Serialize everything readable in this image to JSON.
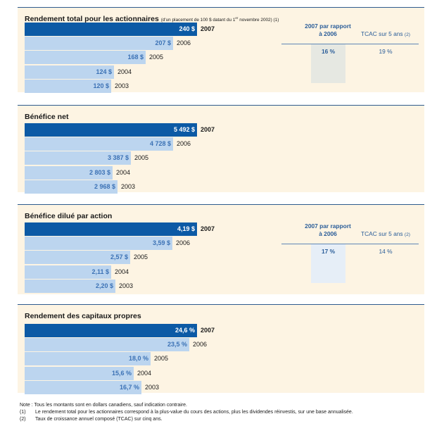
{
  "charts": [
    {
      "title": "Rendement total pour les actionnaires",
      "subtitle_pre": "(d'un placement de 100 $ datant du 1",
      "subtitle_sup": "er",
      "subtitle_post": " novembre 2002) (1)",
      "stats": {
        "header1_line1": "2007 par rapport",
        "header1_line2": "à 2006",
        "header2": "TCAC sur 5 ans",
        "header2_note": "(2)",
        "value1": "16 %",
        "value2": "19 %"
      }
    },
    {
      "title": "Bénéfice net"
    },
    {
      "title": "Bénéfice dilué par action",
      "stats": {
        "header1_line1": "2007 par rapport",
        "header1_line2": "à 2006",
        "header2": "TCAC sur 5 ans",
        "header2_note": "(2)",
        "value1": "17 %",
        "value2": "14 %"
      }
    },
    {
      "title": "Rendement des capitaux propres"
    }
  ],
  "chart_data": [
    {
      "type": "bar",
      "orientation": "horizontal",
      "title": "Rendement total pour les actionnaires",
      "categories": [
        "2007",
        "2006",
        "2005",
        "2004",
        "2003"
      ],
      "values": [
        240,
        207,
        168,
        124,
        120
      ],
      "labels": [
        "240 $",
        "207 $",
        "168 $",
        "124 $",
        "120 $"
      ],
      "xlim": [
        0,
        240
      ]
    },
    {
      "type": "bar",
      "orientation": "horizontal",
      "title": "Bénéfice net",
      "categories": [
        "2007",
        "2006",
        "2005",
        "2004",
        "2003"
      ],
      "values": [
        5492,
        4728,
        3387,
        2803,
        2968
      ],
      "labels": [
        "5 492 $",
        "4 728 $",
        "3 387 $",
        "2 803 $",
        "2 968 $"
      ],
      "xlim": [
        0,
        5492
      ]
    },
    {
      "type": "bar",
      "orientation": "horizontal",
      "title": "Bénéfice dilué par action",
      "categories": [
        "2007",
        "2006",
        "2005",
        "2004",
        "2003"
      ],
      "values": [
        4.19,
        3.59,
        2.57,
        2.11,
        2.2
      ],
      "labels": [
        "4,19 $",
        "3,59 $",
        "2,57 $",
        "2,11 $",
        "2,20 $"
      ],
      "xlim": [
        0,
        4.19
      ]
    },
    {
      "type": "bar",
      "orientation": "horizontal",
      "title": "Rendement des capitaux propres",
      "categories": [
        "2007",
        "2006",
        "2005",
        "2004",
        "2003"
      ],
      "values": [
        24.6,
        23.5,
        18.0,
        15.6,
        16.7
      ],
      "labels": [
        "24,6 %",
        "23,5 %",
        "18,0 %",
        "15,6 %",
        "16,7 %"
      ],
      "xlim": [
        0,
        24.6
      ]
    }
  ],
  "footnotes": [
    {
      "mark": "",
      "text": "Note : Tous les montants sont en dollars canadiens, sauf indication contraire."
    },
    {
      "mark": "(1)",
      "text": "Le rendement total pour les actionnaires correspond à la plus-value du cours des actions, plus les dividendes réinvestis, sur une base annualisée."
    },
    {
      "mark": "(2)",
      "text": "Taux de croissance annuel composé (TCAC) sur cinq ans."
    }
  ]
}
